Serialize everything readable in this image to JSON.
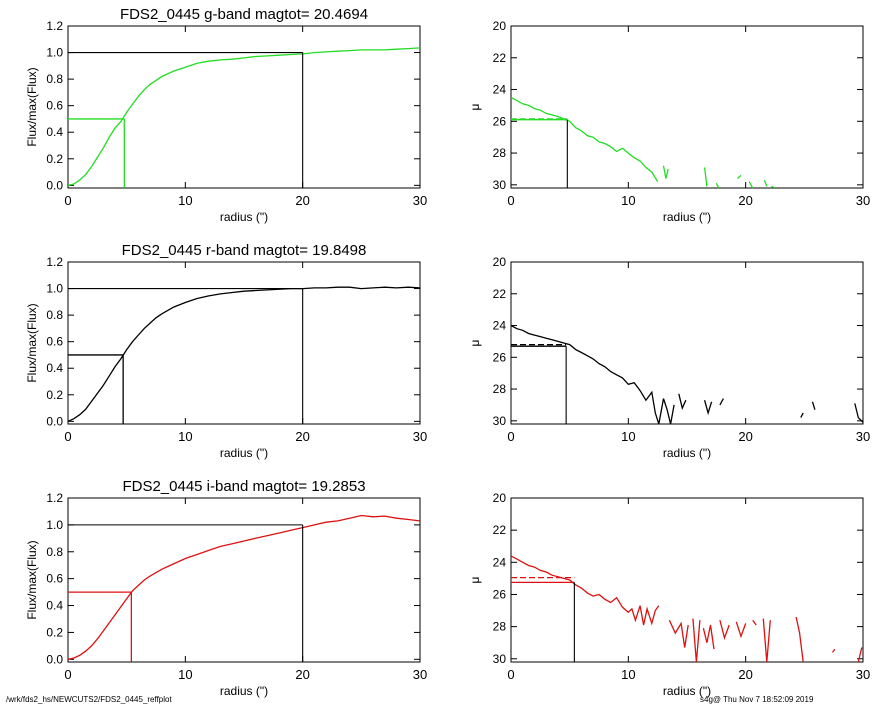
{
  "footer": {
    "left": "/wrk/fds2_hs/NEWCUTS2/FDS2_0445_reffplot",
    "right": "s4g@  Thu Nov  7 18:52:09 2019"
  },
  "colors": {
    "g": "#22dd22",
    "r": "#000000",
    "i": "#dd1111",
    "axes": "#000000"
  },
  "chart_data": [
    {
      "type": "line",
      "title": "FDS2_0445 g-band  magtot=      20.4694",
      "xlabel": "radius (\")",
      "ylabel": "Flux/max(Flux)",
      "xlim": [
        0,
        30
      ],
      "ylim": [
        -0.02,
        1.2
      ],
      "xticks": [
        0,
        10,
        20,
        30
      ],
      "yticks": [
        0.0,
        0.2,
        0.4,
        0.6,
        0.8,
        1.0,
        1.2
      ],
      "ytick_labels": [
        "0.0",
        "0.2",
        "0.4",
        "0.6",
        "0.8",
        "1.0",
        "1.2"
      ],
      "color": "#22dd22",
      "series": [
        {
          "x": [
            0,
            0.5,
            1,
            1.5,
            2,
            2.5,
            3,
            3.5,
            4,
            4.5,
            5,
            5.5,
            6,
            6.5,
            7,
            8,
            9,
            10,
            11,
            12,
            13,
            14,
            15,
            16,
            17,
            18,
            19,
            20,
            21,
            22,
            23,
            24,
            25,
            26,
            27,
            28,
            29,
            30
          ],
          "y": [
            0,
            0.01,
            0.04,
            0.08,
            0.14,
            0.21,
            0.28,
            0.36,
            0.43,
            0.48,
            0.55,
            0.61,
            0.67,
            0.72,
            0.76,
            0.82,
            0.86,
            0.89,
            0.92,
            0.935,
            0.945,
            0.95,
            0.96,
            0.97,
            0.975,
            0.98,
            0.985,
            0.99,
            1.0,
            1.005,
            1.01,
            1.015,
            1.02,
            1.02,
            1.02,
            1.025,
            1.03,
            1.035
          ]
        }
      ],
      "half_light": {
        "r": 4.8,
        "f": 0.5
      },
      "total": {
        "r": 20.0,
        "f": 1.0
      }
    },
    {
      "type": "line",
      "title": "",
      "xlabel": "radius (\")",
      "ylabel": "μ",
      "xlim": [
        0,
        30
      ],
      "ylim": [
        30.2,
        20
      ],
      "xticks": [
        0,
        10,
        20,
        30
      ],
      "yticks": [
        20,
        22,
        24,
        26,
        28,
        30
      ],
      "ytick_labels": [
        "20",
        "22",
        "24",
        "26",
        "28",
        "30"
      ],
      "color": "#22dd22",
      "series": [
        {
          "x": [
            0,
            0.5,
            1,
            1.5,
            2,
            2.5,
            3,
            3.5,
            4,
            4.5,
            5,
            5.5,
            6,
            6.5,
            7,
            7.5,
            8,
            8.5,
            9,
            9.5,
            10,
            10.5,
            11,
            11.5,
            12,
            12.5,
            null,
            13,
            13.2,
            13.4,
            null,
            16.5,
            16.7,
            null,
            17.5,
            17.7,
            null,
            19.3,
            19.6,
            null,
            20.3,
            20.6,
            null,
            21.6,
            21.8,
            null,
            22.2,
            22.5,
            null,
            25
          ],
          "y": [
            24.5,
            24.7,
            24.9,
            25.0,
            25.2,
            25.3,
            25.5,
            25.6,
            25.7,
            25.85,
            26.0,
            26.4,
            26.6,
            26.9,
            27.0,
            27.3,
            27.4,
            27.6,
            27.9,
            27.7,
            28.0,
            28.3,
            28.5,
            28.9,
            29.2,
            29.8,
            null,
            28.8,
            29.6,
            29.0,
            null,
            28.9,
            30.1,
            null,
            29.9,
            30.2,
            null,
            29.6,
            29.4,
            null,
            29.8,
            30.2,
            null,
            29.7,
            30.1,
            null,
            30.1,
            30.2,
            null,
            30.2
          ]
        }
      ],
      "half_light": {
        "r": 4.8,
        "mu": 25.9
      },
      "dashed_mu": 25.85
    },
    {
      "type": "line",
      "title": "FDS2_0445 r-band  magtot=      19.8498",
      "xlabel": "radius (\")",
      "ylabel": "Flux/max(Flux)",
      "xlim": [
        0,
        30
      ],
      "ylim": [
        -0.02,
        1.2
      ],
      "xticks": [
        0,
        10,
        20,
        30
      ],
      "yticks": [
        0.0,
        0.2,
        0.4,
        0.6,
        0.8,
        1.0,
        1.2
      ],
      "ytick_labels": [
        "0.0",
        "0.2",
        "0.4",
        "0.6",
        "0.8",
        "1.0",
        "1.2"
      ],
      "color": "#000000",
      "series": [
        {
          "x": [
            0,
            0.5,
            1,
            1.5,
            2,
            2.5,
            3,
            3.5,
            4,
            4.5,
            5,
            5.5,
            6,
            6.5,
            7,
            7.5,
            8,
            9,
            10,
            11,
            12,
            13,
            14,
            15,
            16,
            17,
            18,
            19,
            20,
            21,
            22,
            23,
            24,
            25,
            26,
            27,
            28,
            29,
            30
          ],
          "y": [
            0,
            0.02,
            0.05,
            0.09,
            0.15,
            0.21,
            0.27,
            0.34,
            0.41,
            0.47,
            0.54,
            0.6,
            0.65,
            0.7,
            0.74,
            0.78,
            0.81,
            0.86,
            0.895,
            0.925,
            0.945,
            0.96,
            0.97,
            0.98,
            0.985,
            0.99,
            0.995,
            1.0,
            1.0,
            1.005,
            1.005,
            1.01,
            1.01,
            1.0,
            1.005,
            1.01,
            1.005,
            1.01,
            1.005
          ]
        }
      ],
      "half_light": {
        "r": 4.7,
        "f": 0.5
      },
      "total": {
        "r": 20.0,
        "f": 1.0
      }
    },
    {
      "type": "line",
      "title": "",
      "xlabel": "radius (\")",
      "ylabel": "μ",
      "xlim": [
        0,
        30
      ],
      "ylim": [
        30.2,
        20
      ],
      "xticks": [
        0,
        10,
        20,
        30
      ],
      "yticks": [
        20,
        22,
        24,
        26,
        28,
        30
      ],
      "ytick_labels": [
        "20",
        "22",
        "24",
        "26",
        "28",
        "30"
      ],
      "color": "#000000",
      "series": [
        {
          "x": [
            0,
            0.5,
            1,
            1.5,
            2,
            2.5,
            3,
            3.5,
            4,
            4.5,
            5,
            5.5,
            6,
            6.5,
            7,
            7.5,
            8,
            8.5,
            9,
            9.5,
            10,
            10.5,
            11,
            11.5,
            12,
            12.3,
            12.6,
            13,
            13.3,
            13.6,
            13.9,
            null,
            14.3,
            14.6,
            14.9,
            null,
            16.5,
            16.8,
            17.1,
            null,
            17.8,
            18.1,
            null,
            21.0,
            null,
            24.7,
            24.9,
            null,
            25.7,
            25.9,
            null,
            28.6,
            null,
            29.3,
            29.6,
            30
          ],
          "y": [
            24.0,
            24.2,
            24.3,
            24.5,
            24.6,
            24.7,
            24.8,
            24.9,
            25.0,
            25.1,
            25.2,
            25.5,
            25.7,
            25.9,
            26.1,
            26.4,
            26.6,
            26.9,
            27.1,
            27.3,
            27.7,
            27.6,
            28.1,
            28.7,
            28.2,
            29.5,
            30.2,
            28.6,
            29.3,
            30.2,
            29.0,
            null,
            28.3,
            29.2,
            28.7,
            null,
            28.7,
            29.5,
            28.8,
            null,
            29.0,
            28.6,
            null,
            30.2,
            null,
            29.8,
            29.5,
            null,
            28.8,
            29.3,
            null,
            29.6,
            null,
            28.9,
            29.8,
            30.1
          ]
        }
      ],
      "half_light": {
        "r": 4.7,
        "mu": 25.3
      },
      "dashed_mu": 25.2
    },
    {
      "type": "line",
      "title": "FDS2_0445 i-band  magtot=      19.2853",
      "xlabel": "radius (\")",
      "ylabel": "Flux/max(Flux)",
      "xlim": [
        0,
        30
      ],
      "ylim": [
        -0.02,
        1.2
      ],
      "xticks": [
        0,
        10,
        20,
        30
      ],
      "yticks": [
        0.0,
        0.2,
        0.4,
        0.6,
        0.8,
        1.0,
        1.2
      ],
      "ytick_labels": [
        "0.0",
        "0.2",
        "0.4",
        "0.6",
        "0.8",
        "1.0",
        "1.2"
      ],
      "color": "#dd1111",
      "series": [
        {
          "x": [
            0,
            0.5,
            1,
            1.5,
            2,
            2.5,
            3,
            3.5,
            4,
            4.5,
            5,
            5.5,
            6,
            6.5,
            7,
            8,
            9,
            10,
            11,
            12,
            13,
            14,
            15,
            16,
            17,
            18,
            19,
            20,
            21,
            22,
            23,
            24,
            25,
            26,
            27,
            28,
            29,
            30
          ],
          "y": [
            0,
            0.01,
            0.03,
            0.06,
            0.1,
            0.15,
            0.21,
            0.27,
            0.33,
            0.39,
            0.45,
            0.51,
            0.55,
            0.59,
            0.62,
            0.67,
            0.71,
            0.75,
            0.78,
            0.81,
            0.84,
            0.86,
            0.88,
            0.9,
            0.92,
            0.94,
            0.96,
            0.98,
            1.0,
            1.02,
            1.03,
            1.05,
            1.07,
            1.06,
            1.065,
            1.05,
            1.04,
            1.03
          ]
        }
      ],
      "half_light": {
        "r": 5.4,
        "f": 0.5
      },
      "total": {
        "r": 20.0,
        "f": 1.0
      }
    },
    {
      "type": "line",
      "title": "",
      "xlabel": "radius (\")",
      "ylabel": "μ",
      "xlim": [
        0,
        30
      ],
      "ylim": [
        30.2,
        20
      ],
      "xticks": [
        0,
        10,
        20,
        30
      ],
      "yticks": [
        20,
        22,
        24,
        26,
        28,
        30
      ],
      "ytick_labels": [
        "20",
        "22",
        "24",
        "26",
        "28",
        "30"
      ],
      "color": "#dd1111",
      "series": [
        {
          "x": [
            0,
            0.5,
            1,
            1.5,
            2,
            2.5,
            3,
            3.5,
            4,
            4.5,
            5,
            5.5,
            6,
            6.5,
            7,
            7.5,
            8,
            8.5,
            9,
            9.5,
            10,
            10.3,
            10.6,
            11,
            11.3,
            11.6,
            12,
            12.3,
            12.6,
            null,
            13.5,
            14,
            14.5,
            14.8,
            15.1,
            null,
            15.5,
            15.8,
            16.1,
            null,
            16.4,
            16.7,
            17,
            17.3,
            null,
            17.8,
            18.2,
            18.6,
            null,
            19.2,
            19.6,
            20,
            null,
            20.6,
            20.9,
            null,
            21.5,
            21.8,
            22.1,
            null,
            24.3,
            24.6,
            24.9,
            null,
            27.4,
            27.6,
            null,
            29.6,
            29.9
          ],
          "y": [
            23.6,
            23.8,
            24.0,
            24.2,
            24.3,
            24.5,
            24.6,
            24.8,
            24.9,
            25.0,
            25.1,
            25.4,
            25.6,
            25.9,
            26.1,
            26.0,
            26.3,
            26.5,
            26.2,
            26.8,
            27.1,
            26.9,
            27.6,
            26.7,
            27.9,
            26.9,
            27.8,
            27.0,
            26.7,
            null,
            27.6,
            28.4,
            27.8,
            29.3,
            27.9,
            null,
            27.5,
            30.2,
            27.6,
            null,
            28.1,
            29.0,
            27.9,
            29.4,
            null,
            27.6,
            28.7,
            27.9,
            null,
            27.7,
            28.6,
            27.8,
            null,
            27.6,
            27.9,
            null,
            27.5,
            30.2,
            27.6,
            null,
            27.4,
            28.4,
            30.2,
            null,
            29.6,
            29.4,
            null,
            30.2,
            29.3
          ]
        }
      ],
      "half_light": {
        "r": 5.4,
        "mu": 25.25
      },
      "dashed_mu": 24.95
    }
  ]
}
